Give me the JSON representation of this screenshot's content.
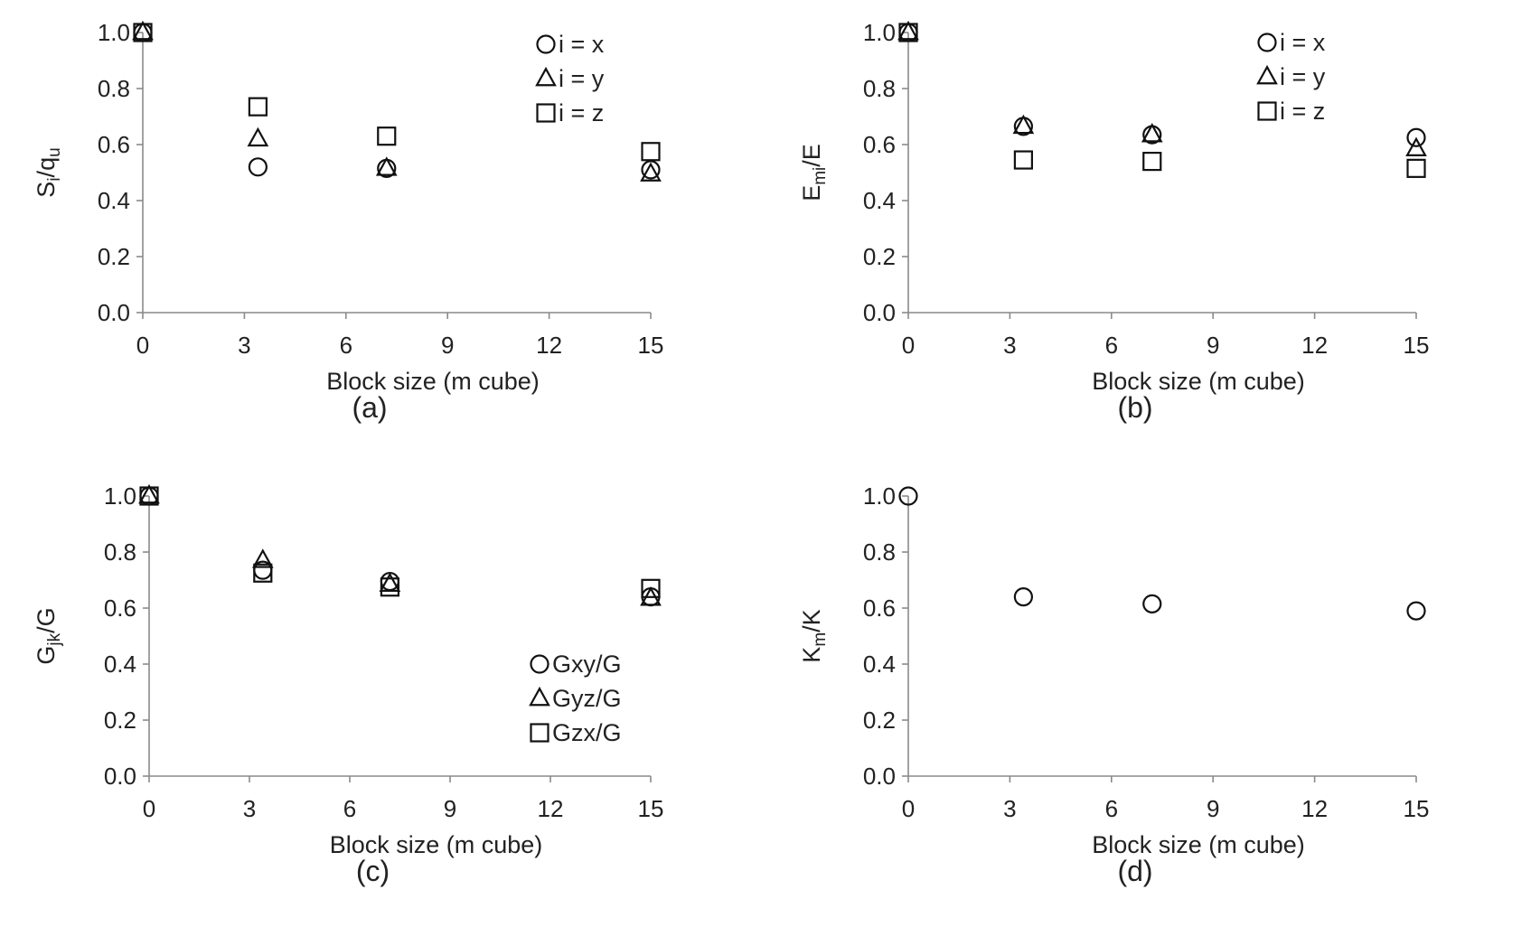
{
  "chart_data": [
    {
      "type": "scatter",
      "panel_label": "(a)",
      "ylabel_main": "S",
      "ylabel_sub": "i",
      "ylabel_rest": "/q",
      "ylabel_sub2": "u",
      "xlabel": "Block size (m cube)",
      "xlim": [
        0,
        15
      ],
      "ylim": [
        0,
        1
      ],
      "xticks": [
        "0",
        "3",
        "6",
        "9",
        "12",
        "15"
      ],
      "yticks": [
        "0.0",
        "0.2",
        "0.4",
        "0.6",
        "0.8",
        "1.0"
      ],
      "legend_position": "top-right",
      "x": [
        0,
        3.4,
        7.2,
        15
      ],
      "series": [
        {
          "name": "i = x",
          "marker": "circle",
          "values": [
            1.0,
            0.52,
            0.515,
            0.51
          ]
        },
        {
          "name": "i = y",
          "marker": "triangle",
          "values": [
            1.0,
            0.62,
            0.515,
            0.495
          ]
        },
        {
          "name": "i = z",
          "marker": "square",
          "values": [
            1.0,
            0.735,
            0.63,
            0.575
          ]
        }
      ]
    },
    {
      "type": "scatter",
      "panel_label": "(b)",
      "ylabel_main": "E",
      "ylabel_sub": "mi",
      "ylabel_rest": "/E",
      "ylabel_sub2": "",
      "xlabel": "Block size (m cube)",
      "xlim": [
        0,
        15
      ],
      "ylim": [
        0,
        1
      ],
      "xticks": [
        "0",
        "3",
        "6",
        "9",
        "12",
        "15"
      ],
      "yticks": [
        "0.0",
        "0.2",
        "0.4",
        "0.6",
        "0.8",
        "1.0"
      ],
      "legend_position": "top-right",
      "x": [
        0,
        3.4,
        7.2,
        15
      ],
      "series": [
        {
          "name": "i = x",
          "marker": "circle",
          "values": [
            1.0,
            0.665,
            0.635,
            0.625
          ]
        },
        {
          "name": "i = y",
          "marker": "triangle",
          "values": [
            1.0,
            0.665,
            0.635,
            0.585
          ]
        },
        {
          "name": "i = z",
          "marker": "square",
          "values": [
            1.0,
            0.545,
            0.54,
            0.515
          ]
        }
      ]
    },
    {
      "type": "scatter",
      "panel_label": "(c)",
      "ylabel_main": "G",
      "ylabel_sub": "jk",
      "ylabel_rest": "/G",
      "ylabel_sub2": "",
      "xlabel": "Block size (m cube)",
      "xlim": [
        0,
        15
      ],
      "ylim": [
        0,
        1
      ],
      "xticks": [
        "0",
        "3",
        "6",
        "9",
        "12",
        "15"
      ],
      "yticks": [
        "0.0",
        "0.2",
        "0.4",
        "0.6",
        "0.8",
        "1.0"
      ],
      "legend_position": "bottom-right",
      "x": [
        0,
        3.4,
        7.2,
        15
      ],
      "series": [
        {
          "name": "Gxy/G",
          "marker": "circle",
          "values": [
            1.0,
            0.735,
            0.695,
            0.64
          ]
        },
        {
          "name": "Gyz/G",
          "marker": "triangle",
          "values": [
            1.0,
            0.77,
            0.685,
            0.635
          ]
        },
        {
          "name": "Gzx/G",
          "marker": "square",
          "values": [
            1.0,
            0.725,
            0.675,
            0.67
          ]
        }
      ]
    },
    {
      "type": "scatter",
      "panel_label": "(d)",
      "ylabel_main": "K",
      "ylabel_sub": "m",
      "ylabel_rest": "/K",
      "ylabel_sub2": "",
      "xlabel": "Block size (m cube)",
      "xlim": [
        0,
        15
      ],
      "ylim": [
        0,
        1
      ],
      "xticks": [
        "0",
        "3",
        "6",
        "9",
        "12",
        "15"
      ],
      "yticks": [
        "0.0",
        "0.2",
        "0.4",
        "0.6",
        "0.8",
        "1.0"
      ],
      "legend_position": "none",
      "x": [
        0,
        3.4,
        7.2,
        15
      ],
      "series": [
        {
          "marker": "circle",
          "values": [
            1.0,
            0.64,
            0.615,
            0.59
          ]
        }
      ]
    }
  ]
}
